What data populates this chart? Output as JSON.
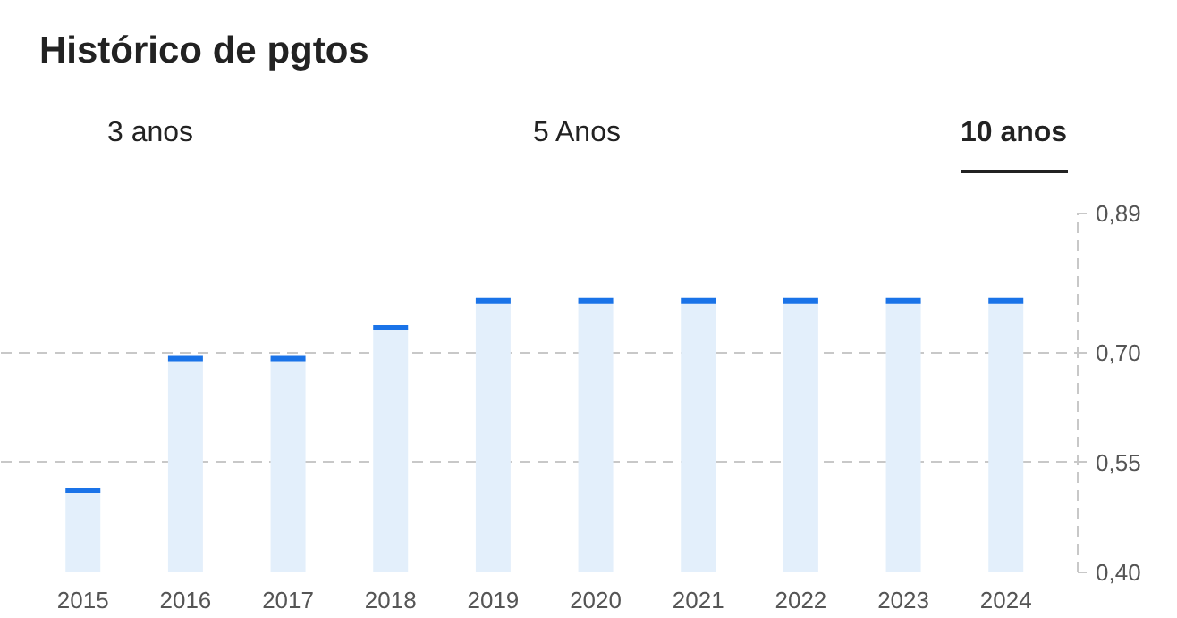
{
  "chart_data": {
    "type": "bar",
    "title": "Histórico de pgtos",
    "annotations": [
      "3 anos",
      "5 Anos",
      "10 anos"
    ],
    "categories": [
      "2015",
      "2016",
      "2017",
      "2018",
      "2019",
      "2020",
      "2021",
      "2022",
      "2023",
      "2024"
    ],
    "series": [
      {
        "color": "#e3effb",
        "values": [
          0.512,
          0.692,
          0.692,
          0.734,
          0.771,
          0.771,
          0.771,
          0.771,
          0.771,
          0.771
        ]
      }
    ],
    "ylim": [
      0.4,
      0.89
    ],
    "yticks": [
      {
        "value": 0.4,
        "label": "0,40"
      },
      {
        "value": 0.55,
        "label": "0,55"
      },
      {
        "value": 0.7,
        "label": "0,70"
      },
      {
        "value": 0.89,
        "label": "0,89"
      }
    ],
    "grid": "y"
  }
}
